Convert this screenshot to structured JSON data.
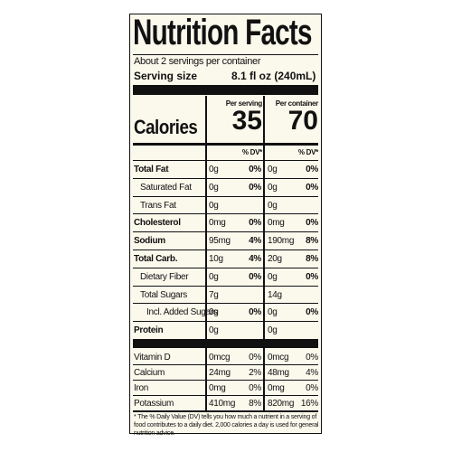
{
  "header": {
    "title": "Nutrition Facts",
    "servings": "About 2 servings per container",
    "serving_size_label": "Serving size",
    "serving_size": "8.1 fl oz (240mL)"
  },
  "columns": {
    "per_serving": "Per serving",
    "per_container": "Per container",
    "dv_serving": "% DV*",
    "dv_container": "% DV*"
  },
  "calories": {
    "label": "Calories",
    "per_serving": "35",
    "per_container": "70"
  },
  "nutrients": [
    {
      "name": "Total Fat",
      "bold": true,
      "indent": 0,
      "serving": "0g",
      "serving_dv": "0%",
      "container": "0g",
      "container_dv": "0%"
    },
    {
      "name": "Saturated Fat",
      "bold": false,
      "indent": 1,
      "serving": "0g",
      "serving_dv": "0%",
      "container": "0g",
      "container_dv": "0%"
    },
    {
      "name": "Trans Fat",
      "bold": false,
      "indent": 1,
      "serving": "0g",
      "container": "0g"
    },
    {
      "name": "Cholesterol",
      "bold": true,
      "indent": 0,
      "serving": "0mg",
      "serving_dv": "0%",
      "container": "0mg",
      "container_dv": "0%"
    },
    {
      "name": "Sodium",
      "bold": true,
      "indent": 0,
      "serving": "95mg",
      "serving_dv": "4%",
      "container": "190mg",
      "container_dv": "8%"
    },
    {
      "name": "Total Carb.",
      "bold": true,
      "indent": 0,
      "serving": "10g",
      "serving_dv": "4%",
      "container": "20g",
      "container_dv": "8%"
    },
    {
      "name": "Dietary Fiber",
      "bold": false,
      "indent": 1,
      "serving": "0g",
      "serving_dv": "0%",
      "container": "0g",
      "container_dv": "0%"
    },
    {
      "name": "Total Sugars",
      "bold": false,
      "indent": 1,
      "serving": "7g",
      "container": "14g"
    },
    {
      "name": "Incl. Added Sugars",
      "bold": false,
      "indent": 2,
      "serving": "0g",
      "serving_dv": "0%",
      "container": "0g",
      "container_dv": "0%"
    },
    {
      "name": "Protein",
      "bold": true,
      "indent": 0,
      "serving": "0g",
      "container": "0g"
    }
  ],
  "vitamins": [
    {
      "name": "Vitamin D",
      "serving": "0mcg",
      "serving_dv": "0%",
      "container": "0mcg",
      "container_dv": "0%"
    },
    {
      "name": "Calcium",
      "serving": "24mg",
      "serving_dv": "2%",
      "container": "48mg",
      "container_dv": "4%"
    },
    {
      "name": "Iron",
      "serving": "0mg",
      "serving_dv": "0%",
      "container": "0mg",
      "container_dv": "0%"
    },
    {
      "name": "Potassium",
      "serving": "410mg",
      "serving_dv": "8%",
      "container": "820mg",
      "container_dv": "16%"
    }
  ],
  "footnote": "* The % Daily Value (DV) tells you how much a nutrient in a serving of food contributes to a daily diet. 2,000 calories a day is used for general nutrition advice."
}
